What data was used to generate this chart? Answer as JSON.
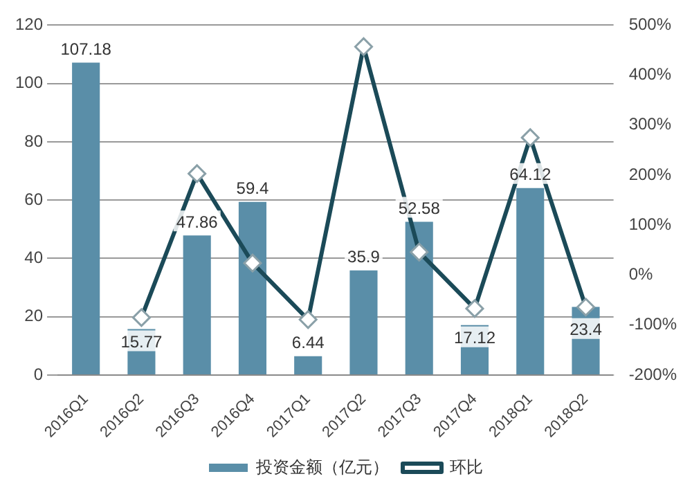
{
  "chart_data": {
    "type": "bar",
    "categories": [
      "2016Q1",
      "2016Q2",
      "2016Q3",
      "2016Q4",
      "2017Q1",
      "2017Q2",
      "2017Q3",
      "2017Q4",
      "2018Q1",
      "2018Q2"
    ],
    "series": [
      {
        "name": "投资金额（亿元）",
        "type": "bar",
        "color": "#5a8ea8",
        "values": [
          107.18,
          15.77,
          47.86,
          59.4,
          6.44,
          35.9,
          52.58,
          17.12,
          64.12,
          23.4
        ],
        "value_labels": [
          "107.18",
          "15.77",
          "47.86",
          "59.4",
          "6.44",
          "35.9",
          "52.58",
          "17.12",
          "64.12",
          "23.4"
        ]
      },
      {
        "name": "环比",
        "type": "line",
        "axis": "y2",
        "color": "#1b4a58",
        "marker": "diamond",
        "values": [
          null,
          -85,
          203,
          24,
          -89,
          457,
          46,
          -67,
          275,
          -64
        ]
      }
    ],
    "ylim": [
      0,
      120
    ],
    "yticks": [
      0,
      20,
      40,
      60,
      80,
      100,
      120
    ],
    "y2lim": [
      -200,
      500
    ],
    "y2ticks": [
      {
        "value": -200,
        "label": "-200%"
      },
      {
        "value": -100,
        "label": "-100%"
      },
      {
        "value": 0,
        "label": "0%"
      },
      {
        "value": 100,
        "label": "100%"
      },
      {
        "value": 200,
        "label": "200%"
      },
      {
        "value": 300,
        "label": "300%"
      },
      {
        "value": 400,
        "label": "400%"
      },
      {
        "value": 500,
        "label": "500%"
      }
    ],
    "grid": "y",
    "legend": "bottom"
  }
}
